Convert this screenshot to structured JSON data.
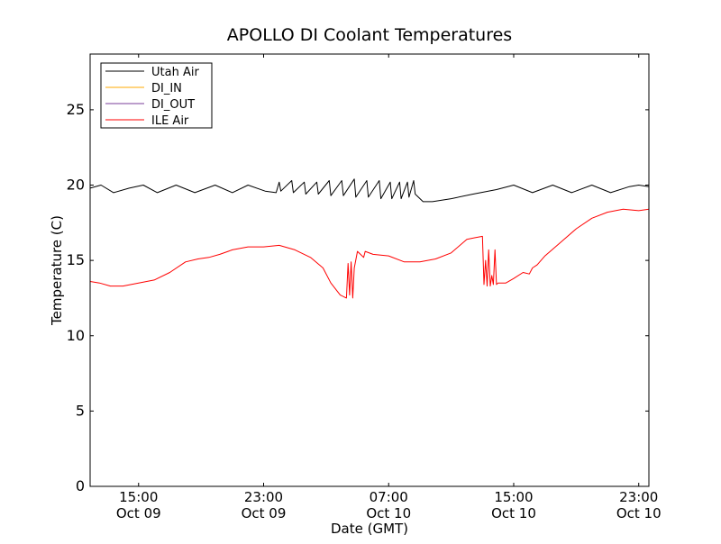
{
  "chart_data": {
    "type": "line",
    "title": "APOLLO DI Coolant Temperatures",
    "xlabel": "Date (GMT)",
    "ylabel": "Temperature (C)",
    "ylim": [
      0,
      28.7
    ],
    "xlim_hours_since_oct09_0000": [
      11.9,
      47.65
    ],
    "yticks": [
      0,
      5,
      10,
      15,
      20,
      25
    ],
    "xticks": [
      {
        "hour": 15,
        "time": "15:00",
        "date": "Oct 09"
      },
      {
        "hour": 23,
        "time": "23:00",
        "date": "Oct 09"
      },
      {
        "hour": 31,
        "time": "07:00",
        "date": "Oct 10"
      },
      {
        "hour": 39,
        "time": "15:00",
        "date": "Oct 10"
      },
      {
        "hour": 47,
        "time": "23:00",
        "date": "Oct 10"
      }
    ],
    "legend_position": "top-left",
    "series": [
      {
        "name": "Utah Air",
        "color": "#000000",
        "x": [
          11.9,
          12.6,
          13.4,
          14.4,
          15.3,
          16.2,
          17.4,
          18.6,
          19.9,
          21.0,
          22.0,
          23.1,
          23.8,
          24.0,
          24.1,
          24.8,
          24.9,
          25.6,
          25.7,
          26.4,
          26.5,
          27.2,
          27.3,
          28.0,
          28.1,
          28.8,
          28.9,
          29.6,
          29.7,
          30.4,
          30.5,
          31.1,
          31.2,
          31.7,
          31.8,
          32.2,
          32.3,
          32.6,
          32.7,
          33.2,
          33.4,
          33.8,
          35.0,
          36.4,
          37.9,
          39.0,
          40.2,
          41.5,
          42.7,
          44.0,
          45.2,
          46.4,
          47.0,
          47.65
        ],
        "values": [
          19.8,
          20.0,
          19.5,
          19.8,
          20.0,
          19.5,
          20.0,
          19.5,
          20.0,
          19.5,
          20.0,
          19.6,
          19.5,
          20.2,
          19.6,
          20.3,
          19.5,
          20.2,
          19.4,
          20.2,
          19.4,
          20.3,
          19.3,
          20.3,
          19.3,
          20.4,
          19.2,
          20.3,
          19.2,
          20.3,
          19.1,
          20.2,
          19.1,
          20.2,
          19.1,
          20.2,
          19.2,
          20.3,
          19.4,
          18.9,
          18.9,
          18.9,
          19.1,
          19.4,
          19.7,
          20.0,
          19.5,
          20.0,
          19.5,
          20.0,
          19.5,
          19.9,
          20.0,
          19.9
        ]
      },
      {
        "name": "DI_IN",
        "color": "#ffaa00",
        "x": [],
        "values": []
      },
      {
        "name": "DI_OUT",
        "color": "#7a3d99",
        "x": [],
        "values": []
      },
      {
        "name": "ILE Air",
        "color": "#ff0000",
        "x": [
          11.9,
          12.5,
          13.2,
          14.0,
          15.0,
          16.0,
          17.0,
          18.0,
          18.8,
          19.5,
          20.2,
          21.0,
          22.0,
          23.0,
          24.0,
          25.0,
          26.0,
          26.8,
          27.3,
          27.9,
          28.3,
          28.4,
          28.5,
          28.6,
          28.7,
          28.8,
          29.0,
          29.2,
          29.4,
          29.5,
          30.0,
          31.0,
          32.0,
          33.0,
          34.0,
          35.0,
          36.0,
          36.5,
          37.0,
          37.1,
          37.2,
          37.3,
          37.4,
          37.5,
          37.6,
          37.7,
          37.8,
          37.9,
          38.0,
          38.5,
          39.0,
          39.6,
          40.0,
          40.2,
          40.5,
          41.0,
          42.0,
          43.0,
          44.0,
          45.0,
          46.0,
          47.0,
          47.65
        ],
        "values": [
          13.6,
          13.5,
          13.3,
          13.3,
          13.5,
          13.7,
          14.2,
          14.9,
          15.1,
          15.2,
          15.4,
          15.7,
          15.9,
          15.9,
          16.0,
          15.7,
          15.2,
          14.5,
          13.5,
          12.7,
          12.5,
          14.8,
          12.7,
          14.9,
          12.5,
          14.5,
          15.6,
          15.4,
          15.2,
          15.6,
          15.4,
          15.3,
          14.9,
          14.9,
          15.1,
          15.5,
          16.4,
          16.5,
          16.6,
          13.4,
          15.0,
          13.3,
          15.7,
          13.3,
          14.0,
          13.4,
          15.7,
          13.4,
          13.5,
          13.5,
          13.8,
          14.2,
          14.1,
          14.5,
          14.7,
          15.3,
          16.2,
          17.1,
          17.8,
          18.2,
          18.4,
          18.3,
          18.4
        ]
      }
    ]
  }
}
